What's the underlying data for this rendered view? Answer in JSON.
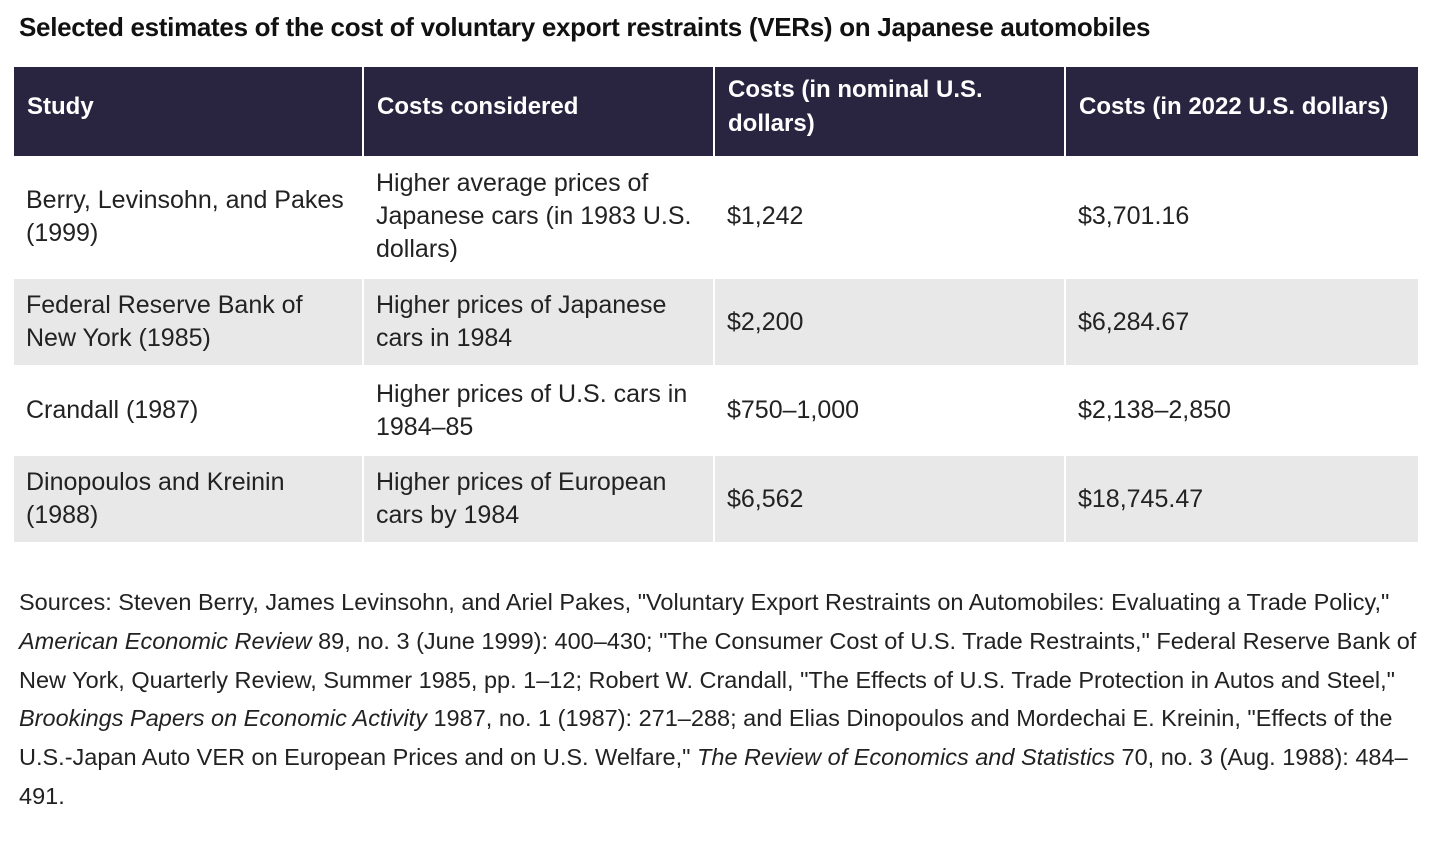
{
  "title": "Selected estimates of the cost of voluntary export restraints (VERs) on Japanese automobiles",
  "chart_data": {
    "type": "table",
    "title": "Selected estimates of the cost of voluntary export restraints (VERs) on Japanese automobiles",
    "columns": [
      "Study",
      "Costs considered",
      "Costs (in nominal U.S. dollars)",
      "Costs (in 2022 U.S. dollars)"
    ],
    "rows": [
      [
        "Berry, Levinsohn, and Pakes (1999)",
        "Higher average prices of Japanese cars (in 1983 U.S. dollars)",
        "$1,242",
        "$3,701.16"
      ],
      [
        "Federal Reserve Bank of New York (1985)",
        "Higher prices of Japanese cars in 1984",
        "$2,200",
        "$6,284.67"
      ],
      [
        "Crandall (1987)",
        "Higher prices of U.S. cars in 1984–85",
        "$750–1,000",
        "$2,138–2,850"
      ],
      [
        "Dinopoulos and Kreinin (1988)",
        "Higher prices of European cars by 1984",
        "$6,562",
        "$18,745.47"
      ]
    ]
  },
  "sources": {
    "part1": "Sources: Steven Berry, James Levinsohn, and Ariel Pakes, \"Voluntary Export Restraints on Automobiles: Evaluating a Trade Policy,\" ",
    "journal1": "American Economic Review",
    "part2": " 89, no. 3 (June 1999): 400–430; \"The Consumer Cost of U.S. Trade Restraints,\" Federal Reserve Bank of New York, Quarterly Review, Summer 1985, pp. 1–12; Robert W. Crandall, \"The Effects of U.S. Trade Protection in Autos and Steel,\" ",
    "journal2": "Brookings Papers on Economic Activity",
    "part3": " 1987, no. 1 (1987): 271–288; and Elias Dinopoulos and Mordechai E. Kreinin, \"Effects of the U.S.-Japan Auto VER on European Prices and on U.S. Welfare,\" ",
    "journal3": "The Review of Economics and Statistics",
    "part4": " 70, no. 3 (Aug. 1988): 484–491."
  },
  "colors": {
    "header_bg": "#29243f",
    "header_text": "#ffffff",
    "stripe_bg": "#e8e8e8"
  }
}
